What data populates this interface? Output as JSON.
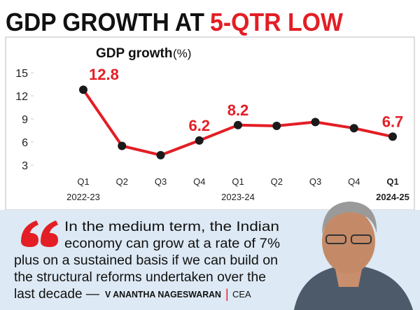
{
  "header": {
    "title": "GDP GROWTH AT",
    "highlight": "5-QTR LOW"
  },
  "chart_data": {
    "type": "line",
    "title": "GDP growth",
    "unit": "(%)",
    "categories": [
      "Q1",
      "Q2",
      "Q3",
      "Q4",
      "Q1",
      "Q2",
      "Q3",
      "Q4",
      "Q1"
    ],
    "x_sublabels": [
      "2022-23",
      null,
      null,
      null,
      "2023-24",
      null,
      null,
      null,
      "2024-25"
    ],
    "values": [
      12.8,
      5.5,
      4.3,
      6.2,
      8.2,
      8.1,
      8.6,
      7.8,
      6.7
    ],
    "value_labels": [
      "12.8",
      null,
      null,
      "6.2",
      "8.2",
      null,
      null,
      null,
      "6.7"
    ],
    "color": "#e31e25",
    "marker_color": "#1a1a1a",
    "ylim": [
      3,
      15
    ],
    "yticks": [
      3,
      6,
      9,
      12,
      15
    ],
    "grid": false
  },
  "quote": {
    "lines": [
      "In the medium term, the Indian",
      "economy can grow at a rate of 7%",
      "plus on a sustained basis if we can build on",
      "the structural reforms undertaken over the",
      "last decade —"
    ],
    "author": "V ANANTHA NAGESWARAN",
    "separator": "|",
    "role": "CEA"
  }
}
